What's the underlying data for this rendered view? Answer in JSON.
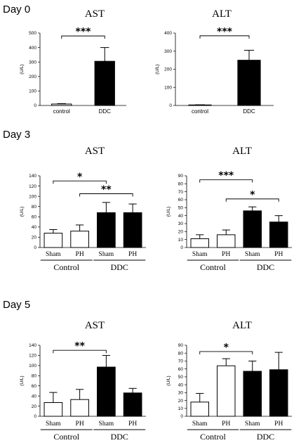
{
  "chart_data": [
    {
      "id": "d0-ast",
      "type": "bar",
      "day_label": "Day 0",
      "title": "AST",
      "ylabel": "(U/L)",
      "ylim": [
        0,
        500
      ],
      "yticks": [
        0,
        100,
        200,
        300,
        400,
        500
      ],
      "categories": [
        "control",
        "DDC"
      ],
      "values": [
        10,
        305
      ],
      "errors": [
        3,
        95
      ],
      "fills": [
        "white",
        "black"
      ],
      "groups": [],
      "significance": [
        {
          "from": 0,
          "to": 1,
          "y": 480,
          "label": "***"
        }
      ]
    },
    {
      "id": "d0-alt",
      "type": "bar",
      "day_label": "",
      "title": "ALT",
      "ylabel": "(U/L)",
      "ylim": [
        0,
        400
      ],
      "yticks": [
        0,
        100,
        200,
        300,
        400
      ],
      "categories": [
        "control",
        "DDC"
      ],
      "values": [
        3,
        250
      ],
      "errors": [
        1,
        55
      ],
      "fills": [
        "white",
        "black"
      ],
      "groups": [],
      "significance": [
        {
          "from": 0,
          "to": 1,
          "y": 385,
          "label": "***"
        }
      ]
    },
    {
      "id": "d3-ast",
      "type": "bar",
      "day_label": "Day 3",
      "title": "AST",
      "ylabel": "(U/L)",
      "ylim": [
        0,
        140
      ],
      "yticks": [
        0,
        20,
        40,
        60,
        80,
        100,
        120,
        140
      ],
      "categories": [
        "Sham",
        "PH",
        "Sham",
        "PH"
      ],
      "values": [
        28,
        32,
        68,
        68
      ],
      "errors": [
        7,
        12,
        20,
        17
      ],
      "fills": [
        "white",
        "white",
        "black",
        "black"
      ],
      "groups": [
        {
          "label": "Control",
          "from": 0,
          "to": 1
        },
        {
          "label": "DDC",
          "from": 2,
          "to": 3
        }
      ],
      "significance": [
        {
          "from": 0,
          "to": 2,
          "y": 130,
          "label": "*"
        },
        {
          "from": 1,
          "to": 3,
          "y": 105,
          "label": "**"
        }
      ]
    },
    {
      "id": "d3-alt",
      "type": "bar",
      "day_label": "",
      "title": "ALT",
      "ylabel": "(U/L)",
      "ylim": [
        0,
        90
      ],
      "yticks": [
        0,
        10,
        20,
        30,
        40,
        50,
        60,
        70,
        80,
        90
      ],
      "categories": [
        "Sham",
        "PH",
        "Sham",
        "PH"
      ],
      "values": [
        11,
        16,
        46,
        32
      ],
      "errors": [
        5,
        6,
        5,
        8
      ],
      "fills": [
        "white",
        "white",
        "black",
        "black"
      ],
      "groups": [
        {
          "label": "Control",
          "from": 0,
          "to": 1
        },
        {
          "label": "DDC",
          "from": 2,
          "to": 3
        }
      ],
      "significance": [
        {
          "from": 0,
          "to": 2,
          "y": 85,
          "label": "***"
        },
        {
          "from": 1,
          "to": 3,
          "y": 61,
          "label": "*"
        }
      ]
    },
    {
      "id": "d5-ast",
      "type": "bar",
      "day_label": "Day 5",
      "title": "AST",
      "ylabel": "(U/L)",
      "ylim": [
        0,
        140
      ],
      "yticks": [
        0,
        20,
        40,
        60,
        80,
        100,
        120,
        140
      ],
      "categories": [
        "Sham",
        "PH",
        "Sham",
        "PH"
      ],
      "values": [
        27,
        33,
        97,
        46
      ],
      "errors": [
        20,
        20,
        23,
        9
      ],
      "fills": [
        "white",
        "white",
        "black",
        "black"
      ],
      "groups": [
        {
          "label": "Control",
          "from": 0,
          "to": 1
        },
        {
          "label": "DDC",
          "from": 2,
          "to": 3
        }
      ],
      "significance": [
        {
          "from": 0,
          "to": 2,
          "y": 130,
          "label": "**"
        }
      ]
    },
    {
      "id": "d5-alt",
      "type": "bar",
      "day_label": "",
      "title": "ALT",
      "ylabel": "(U/L)",
      "ylim": [
        0,
        90
      ],
      "yticks": [
        0,
        10,
        20,
        30,
        40,
        50,
        60,
        70,
        80,
        90
      ],
      "categories": [
        "Sham",
        "PH",
        "Sham",
        "PH"
      ],
      "values": [
        18,
        64,
        57,
        59
      ],
      "errors": [
        11,
        9,
        13,
        22
      ],
      "fills": [
        "white",
        "white",
        "black",
        "black"
      ],
      "groups": [
        {
          "label": "Control",
          "from": 0,
          "to": 1
        },
        {
          "label": "DDC",
          "from": 2,
          "to": 3
        }
      ],
      "significance": [
        {
          "from": 0,
          "to": 2,
          "y": 82,
          "label": "*"
        }
      ]
    }
  ]
}
